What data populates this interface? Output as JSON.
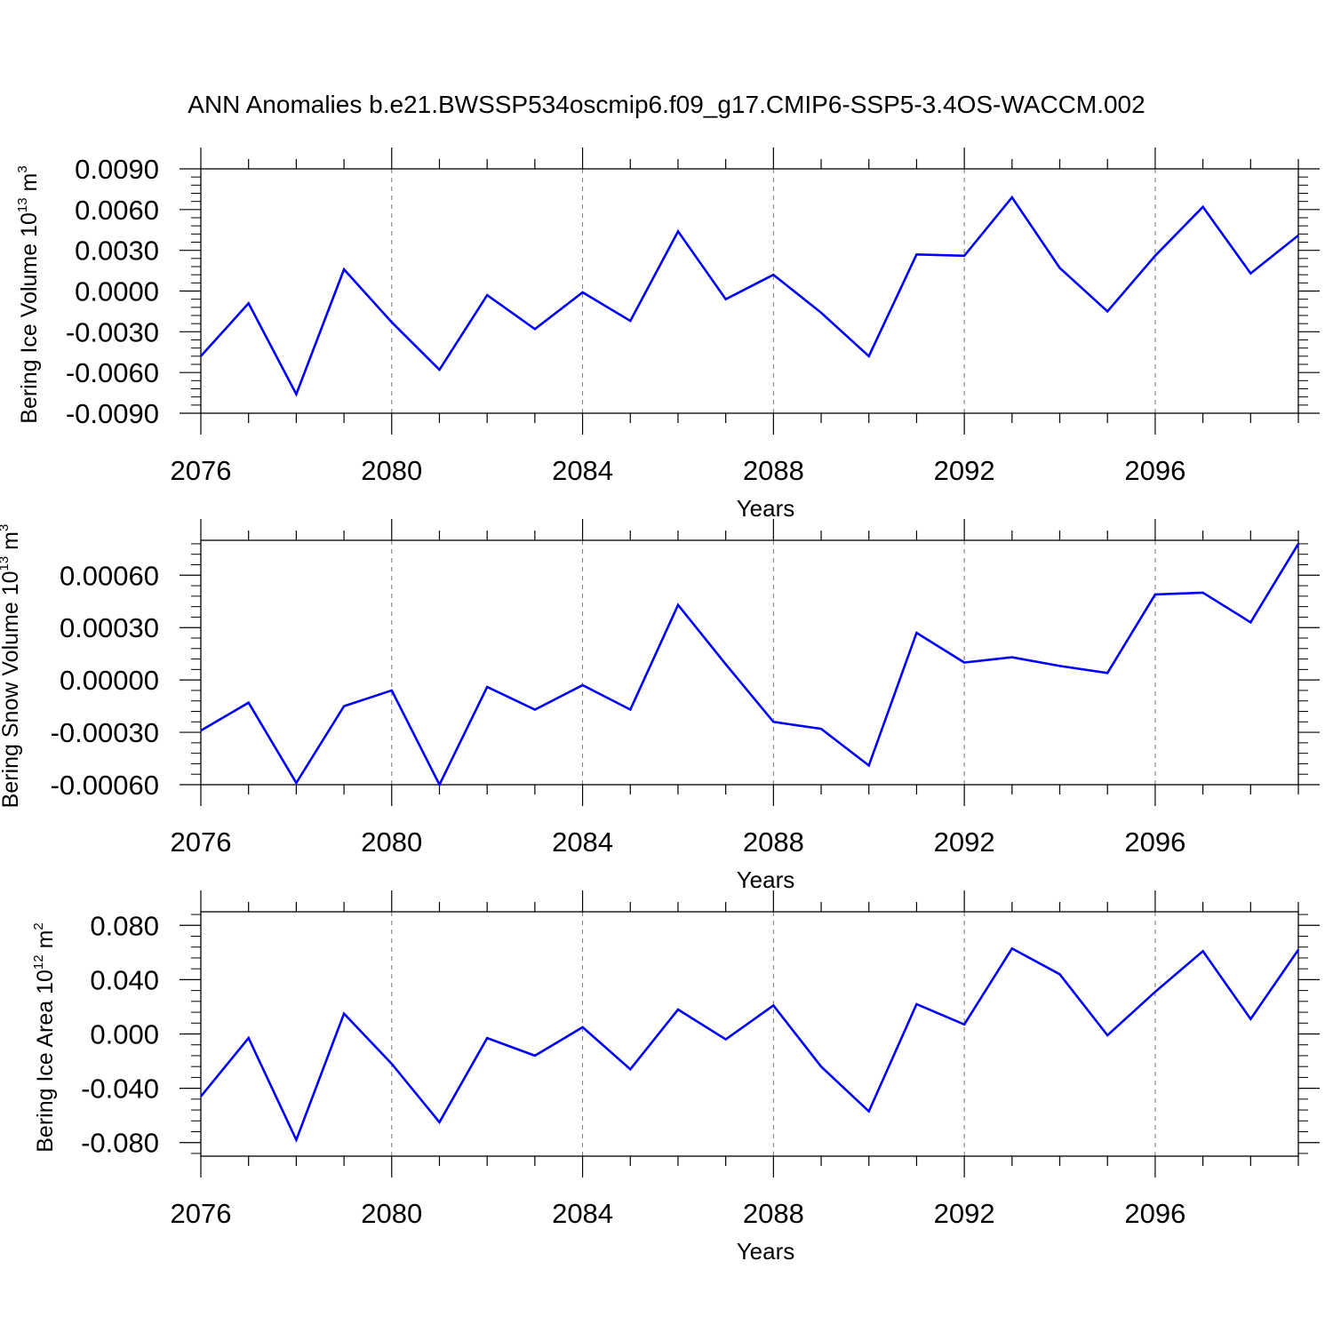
{
  "title": "ANN Anomalies b.e21.BWSSP534oscmip6.f09_g17.CMIP6-SSP5-3.4OS-WACCM.002",
  "colors": {
    "line": "#0000ff",
    "axis": "#000000",
    "grid": "#777777"
  },
  "chart_data": [
    {
      "type": "line",
      "x": [
        2076,
        2077,
        2078,
        2079,
        2080,
        2081,
        2082,
        2083,
        2084,
        2085,
        2086,
        2087,
        2088,
        2089,
        2090,
        2091,
        2092,
        2093,
        2094,
        2095,
        2096,
        2097,
        2098,
        2099
      ],
      "series": [
        {
          "values": [
            -0.0048,
            -0.0009,
            -0.0076,
            0.0016,
            -0.0023,
            -0.0058,
            -0.0003,
            -0.0028,
            -0.0001,
            -0.0022,
            0.0044,
            -0.0006,
            0.0012,
            -0.0016,
            -0.0048,
            0.0027,
            0.0026,
            0.0069,
            0.0017,
            -0.0015,
            0.0026,
            0.0062,
            0.0013,
            0.0041
          ]
        }
      ],
      "xlabel": "Years",
      "ylabel": {
        "main": "Bering Ice Volume 10",
        "exp": "13",
        "unit": " m",
        "unit_exp": "3"
      },
      "xlim": [
        2076,
        2099
      ],
      "ylim": [
        -0.009,
        0.009
      ],
      "xticks": [
        "2076",
        "2080",
        "2084",
        "2088",
        "2092",
        "2096"
      ],
      "yticks": [
        -0.009,
        -0.006,
        -0.003,
        0.0,
        0.003,
        0.006,
        0.009
      ],
      "yticklabels": [
        "-0.0090",
        "-0.0060",
        "-0.0030",
        "0.0000",
        "0.0030",
        "0.0060",
        "0.0090"
      ],
      "grid": "dashed vertical at major x ticks"
    },
    {
      "type": "line",
      "x": [
        2076,
        2077,
        2078,
        2079,
        2080,
        2081,
        2082,
        2083,
        2084,
        2085,
        2086,
        2087,
        2088,
        2089,
        2090,
        2091,
        2092,
        2093,
        2094,
        2095,
        2096,
        2097,
        2098,
        2099
      ],
      "series": [
        {
          "values": [
            -0.00029,
            -0.00013,
            -0.00059,
            -0.00015,
            -6e-05,
            -0.0006,
            -4e-05,
            -0.00017,
            -3e-05,
            -0.00017,
            0.00043,
            9e-05,
            -0.00024,
            -0.00028,
            -0.00049,
            0.00027,
            0.0001,
            0.00013,
            8e-05,
            4e-05,
            0.00049,
            0.0005,
            0.00033,
            0.00078
          ]
        }
      ],
      "xlabel": "Years",
      "ylabel": {
        "main": "Bering Snow Volume 10",
        "exp": "13",
        "unit": " m",
        "unit_exp": "3"
      },
      "xlim": [
        2076,
        2099
      ],
      "ylim": [
        -0.0006,
        0.0008
      ],
      "xticks": [
        "2076",
        "2080",
        "2084",
        "2088",
        "2092",
        "2096"
      ],
      "yticks": [
        -0.0006,
        -0.0003,
        0.0,
        0.0003,
        0.0006
      ],
      "yticklabels": [
        "-0.00060",
        "-0.00030",
        "0.00000",
        "0.00030",
        "0.00060"
      ],
      "grid": "dashed vertical at major x ticks"
    },
    {
      "type": "line",
      "x": [
        2076,
        2077,
        2078,
        2079,
        2080,
        2081,
        2082,
        2083,
        2084,
        2085,
        2086,
        2087,
        2088,
        2089,
        2090,
        2091,
        2092,
        2093,
        2094,
        2095,
        2096,
        2097,
        2098,
        2099
      ],
      "series": [
        {
          "values": [
            -0.046,
            -0.003,
            -0.078,
            0.015,
            -0.022,
            -0.065,
            -0.003,
            -0.016,
            0.005,
            -0.026,
            0.018,
            -0.004,
            0.021,
            -0.024,
            -0.057,
            0.022,
            0.007,
            0.063,
            0.044,
            -0.001,
            0.031,
            0.061,
            0.011,
            0.062
          ]
        }
      ],
      "xlabel": "Years",
      "ylabel": {
        "main": "Bering Ice Area 10",
        "exp": "12",
        "unit": " m",
        "unit_exp": "2"
      },
      "xlim": [
        2076,
        2099
      ],
      "ylim": [
        -0.09,
        0.09
      ],
      "xticks": [
        "2076",
        "2080",
        "2084",
        "2088",
        "2092",
        "2096"
      ],
      "yticks": [
        -0.08,
        -0.04,
        0.0,
        0.04,
        0.08
      ],
      "yticklabels": [
        "-0.080",
        "-0.040",
        "0.000",
        "0.040",
        "0.080"
      ],
      "grid": "dashed vertical at major x ticks"
    }
  ]
}
